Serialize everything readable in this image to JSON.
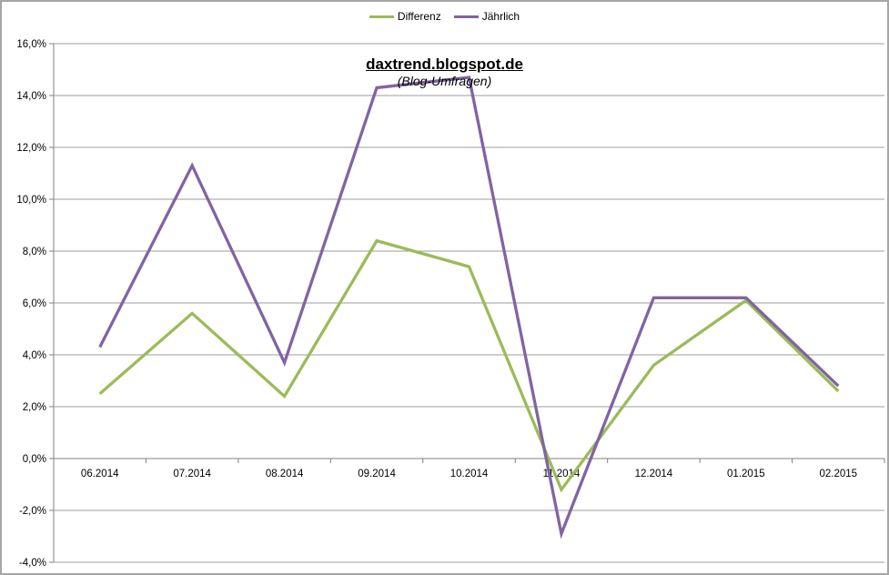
{
  "chart_data": {
    "type": "line",
    "title": "daxtrend.blogspot.de",
    "subtitle": "(Blog-Umfragen)",
    "categories": [
      "06.2014",
      "07.2014",
      "08.2014",
      "09.2014",
      "10.2014",
      "11.2014",
      "12.2014",
      "01.2015",
      "02.2015"
    ],
    "series": [
      {
        "name": "Differenz",
        "color": "#9BBB59",
        "values": [
          2.5,
          5.6,
          2.4,
          8.4,
          7.4,
          -1.2,
          3.6,
          6.1,
          2.6
        ]
      },
      {
        "name": "Jährlich",
        "color": "#8064A2",
        "values": [
          4.3,
          11.3,
          3.7,
          14.3,
          14.7,
          -2.9,
          6.2,
          6.2,
          2.8
        ]
      }
    ],
    "xlabel": "",
    "ylabel": "",
    "ylim": [
      -4,
      16
    ],
    "ytick_step": 2,
    "ytick_labels": [
      "16,0%",
      "14,0%",
      "12,0%",
      "10,0%",
      "8,0%",
      "6,0%",
      "4,0%",
      "2,0%",
      "0,0%",
      "-2,0%",
      "-4,0%"
    ],
    "grid": true,
    "legend_position": "top-center",
    "colors": {
      "gridline": "#9C9C9C",
      "axis": "#808080",
      "tick_label": "#000000",
      "background": "#FFFFFF",
      "frame_border": "#A6A6A6"
    }
  }
}
